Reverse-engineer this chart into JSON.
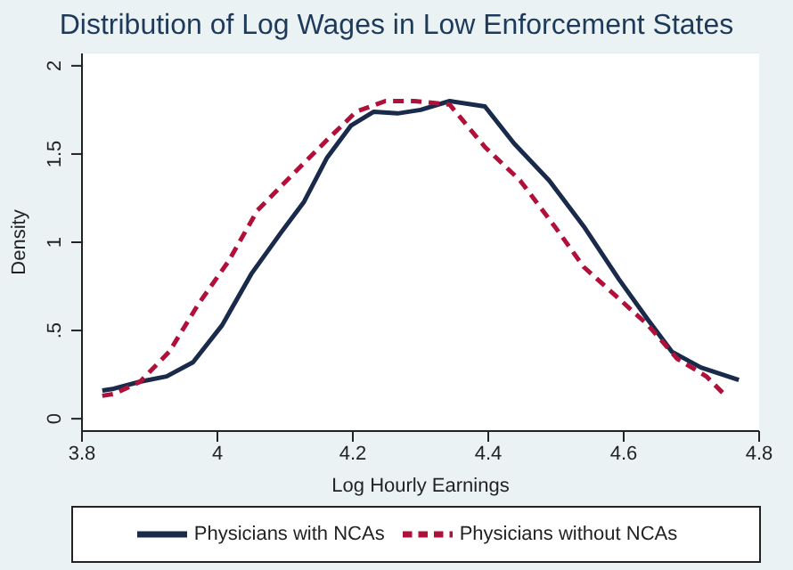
{
  "chart_data": {
    "type": "line",
    "title": "Distribution of Log Wages in Low Enforcement States",
    "xlabel": "Log Hourly Earnings",
    "ylabel": "Density",
    "xlim": [
      3.8,
      4.8
    ],
    "xticks": [
      3.8,
      4,
      4.2,
      4.4,
      4.6,
      4.8
    ],
    "ylim": [
      -0.07,
      2.07
    ],
    "yticks": [
      0,
      {
        "value": 0.5,
        "label": ".5"
      },
      1,
      1.5,
      2
    ],
    "grid": "y",
    "legend": "bottom",
    "marker": "none",
    "series": [
      {
        "name": "Physicians with NCAs",
        "color": "#1a2a4a",
        "line_style": "solid",
        "x": [
          3.83,
          3.847,
          3.886,
          3.925,
          3.964,
          4.007,
          4.05,
          4.093,
          4.128,
          4.162,
          4.197,
          4.231,
          4.266,
          4.3,
          4.343,
          4.395,
          4.438,
          4.49,
          4.541,
          4.593,
          4.636,
          4.671,
          4.714,
          4.77
        ],
        "values": [
          0.16,
          0.17,
          0.21,
          0.24,
          0.32,
          0.53,
          0.82,
          1.05,
          1.23,
          1.48,
          1.66,
          1.74,
          1.73,
          1.75,
          1.8,
          1.77,
          1.56,
          1.35,
          1.09,
          0.79,
          0.56,
          0.38,
          0.29,
          0.22
        ]
      },
      {
        "name": "Physicians without NCAs",
        "color": "#b0103a",
        "line_style": "dashed",
        "x": [
          3.83,
          3.847,
          3.886,
          3.929,
          3.972,
          4.016,
          4.059,
          4.11,
          4.162,
          4.205,
          4.248,
          4.291,
          4.343,
          4.395,
          4.447,
          4.498,
          4.541,
          4.593,
          4.636,
          4.679,
          4.722,
          4.748
        ],
        "values": [
          0.13,
          0.14,
          0.21,
          0.38,
          0.65,
          0.89,
          1.18,
          1.38,
          1.58,
          1.74,
          1.8,
          1.8,
          1.78,
          1.54,
          1.35,
          1.09,
          0.86,
          0.68,
          0.53,
          0.34,
          0.24,
          0.14
        ]
      }
    ]
  }
}
